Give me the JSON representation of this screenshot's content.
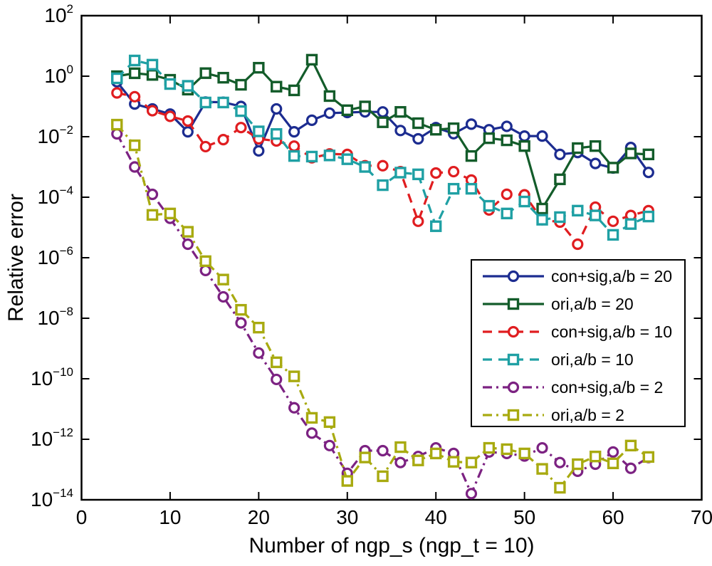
{
  "figure": {
    "background": "#ffffff",
    "box_color": "#000000"
  },
  "chart_data": {
    "type": "line",
    "yscale": "log",
    "title": "",
    "xlabel": "Number of ngp_s (ngp_t = 10)",
    "ylabel": "Relative error",
    "xlim": [
      0,
      70
    ],
    "ylim_exponents": [
      -14,
      2
    ],
    "x_ticks": [
      0,
      10,
      20,
      30,
      40,
      50,
      60,
      70
    ],
    "y_tick_exponents": [
      2,
      0,
      -2,
      -4,
      -6,
      -8,
      -10,
      -12,
      -14
    ],
    "grid": false,
    "legend_position": "middle-right",
    "x": [
      4,
      6,
      8,
      10,
      12,
      14,
      16,
      18,
      20,
      22,
      24,
      26,
      28,
      30,
      32,
      34,
      36,
      38,
      40,
      42,
      44,
      46,
      48,
      50,
      52,
      54,
      56,
      58,
      60,
      62,
      64
    ],
    "series": [
      {
        "name": "con+sig,a/b = 20",
        "color": "#1C2C90",
        "linestyle": "solid",
        "marker": "circle",
        "values": [
          0.65,
          0.12,
          0.083,
          0.056,
          0.0145,
          0.14,
          0.138,
          0.1,
          0.0034,
          0.083,
          0.0145,
          0.035,
          0.06,
          0.063,
          0.066,
          0.066,
          0.016,
          0.0085,
          0.02,
          0.0126,
          0.026,
          0.017,
          0.022,
          0.0105,
          0.0105,
          0.0026,
          0.003,
          0.0013,
          0.00092,
          0.0044,
          0.00066
        ]
      },
      {
        "name": "ori,a/b = 20",
        "color": "#135C2A",
        "linestyle": "solid",
        "marker": "square",
        "values": [
          1.0,
          1.25,
          1.1,
          0.76,
          0.36,
          1.26,
          0.89,
          0.52,
          1.9,
          0.45,
          0.34,
          3.5,
          0.22,
          0.075,
          0.1,
          0.03,
          0.066,
          0.028,
          0.017,
          0.019,
          0.0023,
          0.0089,
          0.0076,
          0.0049,
          4.2e-05,
          0.00039,
          0.0042,
          0.0049,
          0.00095,
          0.0028,
          0.0026
        ]
      },
      {
        "name": "con+sig,a/b = 10",
        "color": "#E01D20",
        "linestyle": "dashed",
        "marker": "circle",
        "values": [
          0.28,
          0.21,
          0.072,
          0.047,
          0.033,
          0.0047,
          0.008,
          0.02,
          0.0085,
          0.0072,
          0.0049,
          0.002,
          0.0027,
          0.0026,
          0.0011,
          0.0011,
          0.0007,
          1.6e-05,
          0.00063,
          0.0007,
          0.00037,
          3.8e-05,
          0.000125,
          0.00012,
          1.8e-05,
          1.5e-05,
          2.8e-06,
          4.7e-05,
          1.6e-05,
          2.5e-05,
          3.6e-05
        ]
      },
      {
        "name": "ori,a/b = 10",
        "color": "#1FA0A4",
        "linestyle": "dashed",
        "marker": "square",
        "values": [
          0.85,
          3.3,
          2.4,
          0.55,
          0.48,
          0.135,
          0.135,
          0.07,
          0.015,
          0.0123,
          0.0023,
          0.0022,
          0.0024,
          0.0018,
          0.001,
          0.00025,
          0.00065,
          0.00057,
          1.1e-05,
          0.00019,
          0.00019,
          5.2e-05,
          2.9e-05,
          7.2e-05,
          1.8e-05,
          2.2e-05,
          3.6e-05,
          2.5e-05,
          5.7e-06,
          1.3e-05,
          2.3e-05
        ]
      },
      {
        "name": "con+sig,a/b = 2",
        "color": "#7C2282",
        "linestyle": "dashdot",
        "marker": "circle",
        "values": [
          0.0124,
          0.001,
          0.000124,
          2e-05,
          2.8e-06,
          3.8e-07,
          5.1e-08,
          7e-09,
          7.1e-10,
          9.5e-11,
          1.1e-11,
          1.6e-12,
          6.2e-13,
          7.5e-14,
          4.2e-13,
          4.2e-13,
          1.7e-13,
          2.7e-13,
          5.2e-13,
          3.4e-13,
          1.6e-14,
          3.8e-13,
          3.4e-13,
          2.8e-13,
          5.2e-13,
          1.7e-13,
          8.8e-14,
          1.5e-13,
          3.8e-13,
          1.1e-13,
          2.5e-13
        ]
      },
      {
        "name": "ori,a/b = 2",
        "color": "#A8AA10",
        "linestyle": "dashdot",
        "marker": "square",
        "values": [
          0.025,
          0.0052,
          2.6e-05,
          2.9e-05,
          7.2e-06,
          7.7e-07,
          1.9e-07,
          1.9e-08,
          4.9e-09,
          3.5e-10,
          1.2e-10,
          5.1e-12,
          3.7e-12,
          4.2e-14,
          2.5e-13,
          6e-14,
          5.5e-13,
          2e-13,
          3.4e-13,
          1.8e-13,
          1.7e-13,
          5.2e-13,
          4.7e-13,
          3.4e-13,
          1.05e-13,
          2.5e-14,
          1.5e-13,
          2.7e-13,
          1.6e-13,
          6.2e-13,
          2.6e-13
        ]
      }
    ]
  }
}
